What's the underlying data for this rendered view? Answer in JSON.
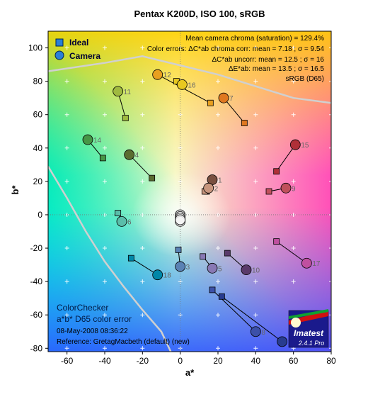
{
  "header": {
    "title": "Pentax K200D, ISO 100, sRGB"
  },
  "info_lines": [
    "Mean camera chroma (saturation) = 129.4%",
    "Color errors: ΔC*ab chroma corr:  mean = 7.18 ;  σ = 9.54",
    "ΔC*ab uncorr:  mean = 12.5 ;  σ = 16",
    "ΔE*ab:  mean = 13.5 ;  σ = 16.5",
    "sRGB (D65)"
  ],
  "legend": {
    "ideal_label": "Ideal",
    "camera_label": "Camera"
  },
  "footer": {
    "line1": "ColorChecker",
    "line2": "a*b* D65 color error",
    "date": "08-May-2008 08:36:22",
    "reference": "Reference: GretagMacbeth (default) (new)"
  },
  "logo": {
    "brand": "Imatest",
    "version": "2.4.1  Pro"
  },
  "chart_data": {
    "type": "scatter",
    "title": "Pentax K200D, ISO 100, sRGB",
    "xlabel": "a*",
    "ylabel": "b*",
    "xlim": [
      -70,
      80
    ],
    "ylim": [
      -82,
      110
    ],
    "xticks": [
      -60,
      -40,
      -20,
      0,
      20,
      40,
      60,
      80
    ],
    "yticks": [
      -80,
      -60,
      -40,
      -20,
      0,
      20,
      40,
      60,
      80,
      100
    ],
    "legend_position": "top-left",
    "grid": true,
    "series": [
      {
        "name": "Ideal",
        "marker": "square"
      },
      {
        "name": "Camera",
        "marker": "circle"
      }
    ],
    "patches": [
      {
        "id": "1",
        "ideal": [
          14,
          14
        ],
        "camera": [
          17,
          21
        ],
        "color": "#7a5040"
      },
      {
        "id": "2",
        "ideal": [
          13,
          14
        ],
        "camera": [
          15,
          16
        ],
        "color": "#c8967e"
      },
      {
        "id": "3",
        "ideal": [
          -1,
          -21
        ],
        "camera": [
          0,
          -31
        ],
        "color": "#5a82b4"
      },
      {
        "id": "4",
        "ideal": [
          -15,
          22
        ],
        "camera": [
          -27,
          36
        ],
        "color": "#5a6c30"
      },
      {
        "id": "5",
        "ideal": [
          12,
          -25
        ],
        "camera": [
          17,
          -32
        ],
        "color": "#8878b4"
      },
      {
        "id": "6",
        "ideal": [
          -33,
          1
        ],
        "camera": [
          -31,
          -4
        ],
        "color": "#5abeaa"
      },
      {
        "id": "7",
        "ideal": [
          34,
          55
        ],
        "camera": [
          23,
          70
        ],
        "color": "#e07820"
      },
      {
        "id": "8",
        "ideal": [
          17,
          -45
        ],
        "camera": [
          40,
          -70
        ],
        "color": "#3c50a8"
      },
      {
        "id": "9",
        "ideal": [
          47,
          14
        ],
        "camera": [
          56,
          16
        ],
        "color": "#c0505c"
      },
      {
        "id": "10",
        "ideal": [
          25,
          -23
        ],
        "camera": [
          35,
          -33
        ],
        "color": "#5a3a6a"
      },
      {
        "id": "11",
        "ideal": [
          -29,
          58
        ],
        "camera": [
          -33,
          74
        ],
        "color": "#a0ba40"
      },
      {
        "id": "12",
        "ideal": [
          16,
          67
        ],
        "camera": [
          -12,
          84
        ],
        "color": "#e8a020"
      },
      {
        "id": "13",
        "ideal": [
          22,
          -49
        ],
        "camera": [
          54,
          -76
        ],
        "color": "#283c90"
      },
      {
        "id": "14",
        "ideal": [
          -41,
          34
        ],
        "camera": [
          -49,
          45
        ],
        "color": "#469646"
      },
      {
        "id": "15",
        "ideal": [
          51,
          26
        ],
        "camera": [
          61,
          42
        ],
        "color": "#b03038"
      },
      {
        "id": "16",
        "ideal": [
          -2,
          80
        ],
        "camera": [
          1,
          78
        ],
        "color": "#e8c820"
      },
      {
        "id": "17",
        "ideal": [
          51,
          -16
        ],
        "camera": [
          67,
          -29
        ],
        "color": "#c050a0"
      },
      {
        "id": "18",
        "ideal": [
          -26,
          -26
        ],
        "camera": [
          -12,
          -36
        ],
        "color": "#0087a8"
      }
    ],
    "neutral_camera": [
      [
        0,
        0
      ],
      [
        0,
        -1
      ],
      [
        0,
        -2
      ],
      [
        0,
        -3
      ],
      [
        0,
        -4
      ],
      [
        0,
        -3
      ]
    ],
    "gamut_outer": [
      [
        -70,
        86
      ],
      [
        -40,
        91
      ],
      [
        -20,
        95
      ],
      [
        20,
        84
      ],
      [
        60,
        70
      ],
      [
        80,
        67
      ]
    ],
    "gamut_inner": [
      [
        -70,
        29
      ],
      [
        -60,
        10
      ],
      [
        -50,
        -10
      ],
      [
        -40,
        -28
      ],
      [
        -30,
        -43
      ],
      [
        -20,
        -57
      ],
      [
        -10,
        -70
      ],
      [
        -5,
        -82
      ]
    ]
  }
}
